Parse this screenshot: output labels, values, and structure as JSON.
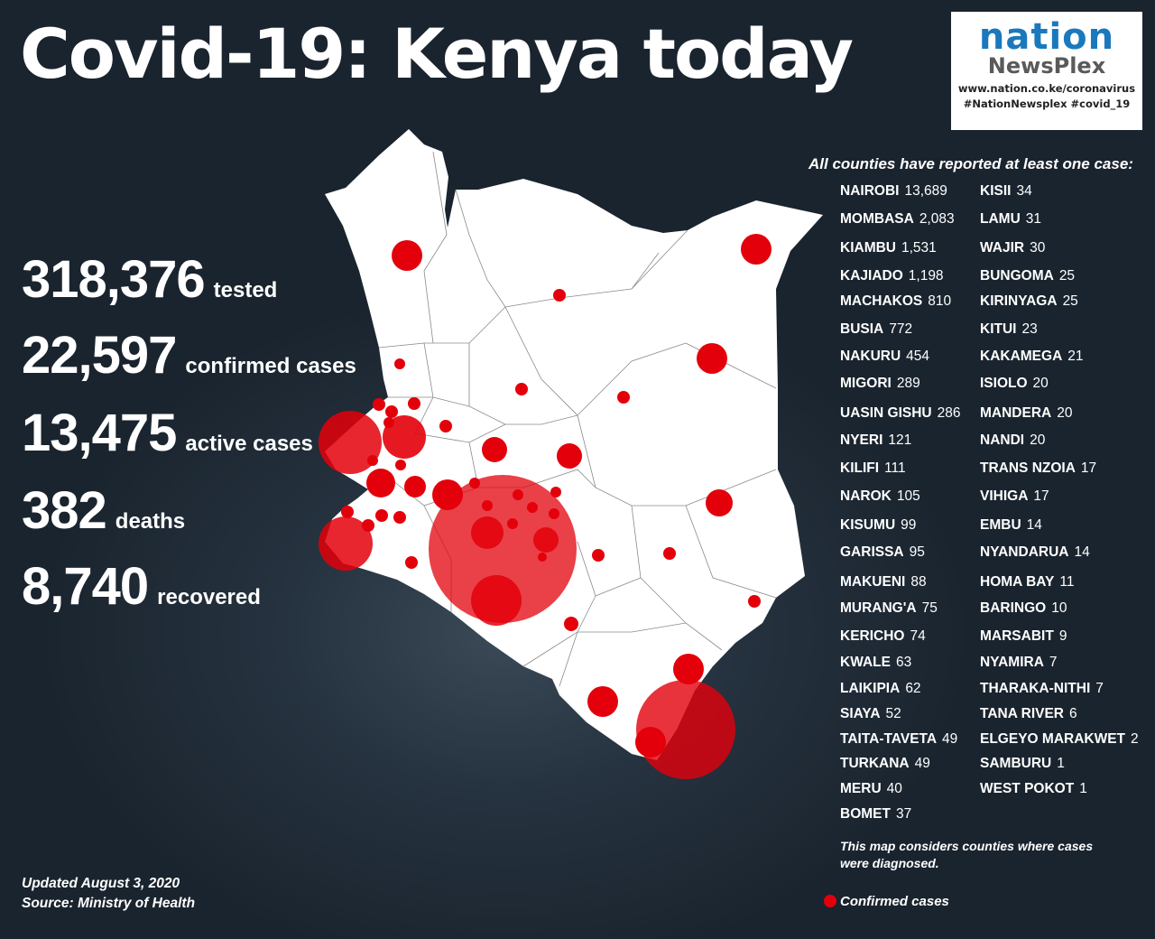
{
  "title": "Covid-19: Kenya today",
  "logo": {
    "brand_top": "nation",
    "brand_bottom": "NewsPlex",
    "url": "www.nation.co.ke/coronavirus",
    "hashtags": "#NationNewsplex #covid_19"
  },
  "stats": [
    {
      "value": "318,376",
      "label": "tested"
    },
    {
      "value": "22,597",
      "label": "confirmed cases"
    },
    {
      "value": "13,475",
      "label": "active cases"
    },
    {
      "value": "382",
      "label": "deaths"
    },
    {
      "value": "8,740",
      "label": "recovered"
    }
  ],
  "counties_header": "All counties have reported at least one case:",
  "counties": [
    {
      "name": "NAIROBI",
      "value": "13,689"
    },
    {
      "name": "MOMBASA",
      "value": "2,083"
    },
    {
      "name": "KIAMBU",
      "value": "1,531"
    },
    {
      "name": "KAJIADO",
      "value": "1,198"
    },
    {
      "name": "MACHAKOS",
      "value": "810"
    },
    {
      "name": "BUSIA",
      "value": "772"
    },
    {
      "name": "NAKURU",
      "value": "454"
    },
    {
      "name": "MIGORI",
      "value": "289"
    },
    {
      "name": "UASIN GISHU",
      "value": "286"
    },
    {
      "name": "NYERI",
      "value": "121"
    },
    {
      "name": "KILIFI",
      "value": "111"
    },
    {
      "name": "NAROK",
      "value": "105"
    },
    {
      "name": "KISUMU",
      "value": "99"
    },
    {
      "name": "GARISSA",
      "value": "95"
    },
    {
      "name": "MAKUENI",
      "value": "88"
    },
    {
      "name": "MURANG'A",
      "value": "75"
    },
    {
      "name": "KERICHO",
      "value": "74"
    },
    {
      "name": "KWALE",
      "value": "63"
    },
    {
      "name": "LAIKIPIA",
      "value": "62"
    },
    {
      "name": "SIAYA",
      "value": "52"
    },
    {
      "name": "TAITA-TAVETA",
      "value": "49"
    },
    {
      "name": "TURKANA",
      "value": "49"
    },
    {
      "name": "MERU",
      "value": "40"
    },
    {
      "name": "BOMET",
      "value": "37"
    },
    {
      "name": "KISII",
      "value": "34"
    },
    {
      "name": "LAMU",
      "value": "31"
    },
    {
      "name": "WAJIR",
      "value": "30"
    },
    {
      "name": "BUNGOMA",
      "value": "25"
    },
    {
      "name": "KIRINYAGA",
      "value": "25"
    },
    {
      "name": "KITUI",
      "value": "23"
    },
    {
      "name": "KAKAMEGA",
      "value": "21"
    },
    {
      "name": "ISIOLO",
      "value": "20"
    },
    {
      "name": "MANDERA",
      "value": "20"
    },
    {
      "name": "NANDI",
      "value": "20"
    },
    {
      "name": "TRANS NZOIA",
      "value": "17"
    },
    {
      "name": "VIHIGA",
      "value": "17"
    },
    {
      "name": "EMBU",
      "value": "14"
    },
    {
      "name": "NYANDARUA",
      "value": "14"
    },
    {
      "name": "HOMA BAY",
      "value": "11"
    },
    {
      "name": "BARINGO",
      "value": "10"
    },
    {
      "name": "MARSABIT",
      "value": "9"
    },
    {
      "name": "NYAMIRA",
      "value": "7"
    },
    {
      "name": "THARAKA-NITHI",
      "value": "7"
    },
    {
      "name": "TANA RIVER",
      "value": "6"
    },
    {
      "name": "ELGEYO MARAKWET",
      "value": "2"
    },
    {
      "name": "SAMBURU",
      "value": "1"
    },
    {
      "name": "WEST POKOT",
      "value": "1"
    }
  ],
  "note": "This map considers counties where cases were diagnosed.",
  "legend": {
    "label": "Confirmed cases",
    "color": "#e3000b"
  },
  "footer": {
    "updated": "Updated August 3, 2020",
    "source": "Source: Ministry of Health"
  },
  "colors": {
    "map_fill": "#ffffff",
    "marker": "#e3000b",
    "background": "#1f2b36"
  }
}
